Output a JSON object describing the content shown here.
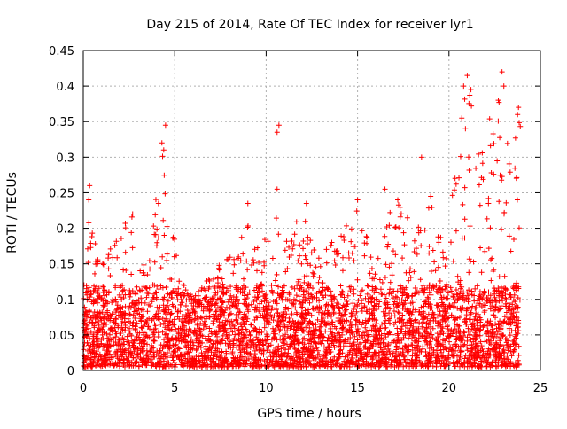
{
  "chart_data": {
    "type": "scatter",
    "title": "Day 215 of 2014, Rate Of TEC Index for receiver lyr1",
    "xlabel": "GPS time / hours",
    "ylabel": "ROTI / TECUs",
    "xlim": [
      0,
      25
    ],
    "ylim": [
      0,
      0.45
    ],
    "x_ticks": [
      0,
      5,
      10,
      15,
      20,
      25
    ],
    "x_tick_labels": [
      "0",
      "5",
      "10",
      "15",
      "20",
      "25"
    ],
    "y_ticks": [
      0,
      0.05,
      0.1,
      0.15,
      0.2,
      0.25,
      0.3,
      0.35,
      0.4,
      0.45
    ],
    "y_tick_labels": [
      "0",
      "0.05",
      "0.1",
      "0.15",
      "0.2",
      "0.25",
      "0.3",
      "0.35",
      "0.4",
      "0.45"
    ],
    "grid": true,
    "marker": "+",
    "marker_color": "#ff0000",
    "series": [
      {
        "name": "ROTI",
        "x_range": [
          0,
          23.9
        ],
        "typical_range": [
          0.005,
          0.12
        ],
        "envelope": [
          [
            0.0,
            0.13
          ],
          [
            0.3,
            0.21
          ],
          [
            1.0,
            0.15
          ],
          [
            2.0,
            0.2
          ],
          [
            2.7,
            0.22
          ],
          [
            3.2,
            0.14
          ],
          [
            3.8,
            0.2
          ],
          [
            4.3,
            0.32
          ],
          [
            4.5,
            0.35
          ],
          [
            4.8,
            0.24
          ],
          [
            5.2,
            0.14
          ],
          [
            6.0,
            0.1
          ],
          [
            7.0,
            0.14
          ],
          [
            8.0,
            0.16
          ],
          [
            8.8,
            0.2
          ],
          [
            9.2,
            0.22
          ],
          [
            10.0,
            0.2
          ],
          [
            10.5,
            0.22
          ],
          [
            11.0,
            0.2
          ],
          [
            12.0,
            0.22
          ],
          [
            13.0,
            0.17
          ],
          [
            14.0,
            0.2
          ],
          [
            15.0,
            0.23
          ],
          [
            16.0,
            0.16
          ],
          [
            17.0,
            0.24
          ],
          [
            18.0,
            0.22
          ],
          [
            19.0,
            0.24
          ],
          [
            19.8,
            0.19
          ],
          [
            20.5,
            0.3
          ],
          [
            21.0,
            0.42
          ],
          [
            21.6,
            0.31
          ],
          [
            22.2,
            0.36
          ],
          [
            22.8,
            0.41
          ],
          [
            23.3,
            0.31
          ],
          [
            23.8,
            0.37
          ]
        ],
        "outliers": [
          [
            4.5,
            0.345
          ],
          [
            4.3,
            0.32
          ],
          [
            4.4,
            0.31
          ],
          [
            10.7,
            0.345
          ],
          [
            10.6,
            0.335
          ],
          [
            18.5,
            0.3
          ],
          [
            21.0,
            0.415
          ],
          [
            20.8,
            0.4
          ],
          [
            21.2,
            0.395
          ],
          [
            20.7,
            0.355
          ],
          [
            20.9,
            0.34
          ],
          [
            22.9,
            0.42
          ],
          [
            23.0,
            0.4
          ],
          [
            22.7,
            0.38
          ],
          [
            23.8,
            0.37
          ],
          [
            23.75,
            0.36
          ],
          [
            0.35,
            0.26
          ],
          [
            0.3,
            0.24
          ],
          [
            10.6,
            0.255
          ],
          [
            16.5,
            0.255
          ],
          [
            9.0,
            0.235
          ],
          [
            12.2,
            0.235
          ],
          [
            15.0,
            0.24
          ],
          [
            17.2,
            0.24
          ],
          [
            19.0,
            0.245
          ],
          [
            2.7,
            0.22
          ]
        ]
      }
    ]
  }
}
